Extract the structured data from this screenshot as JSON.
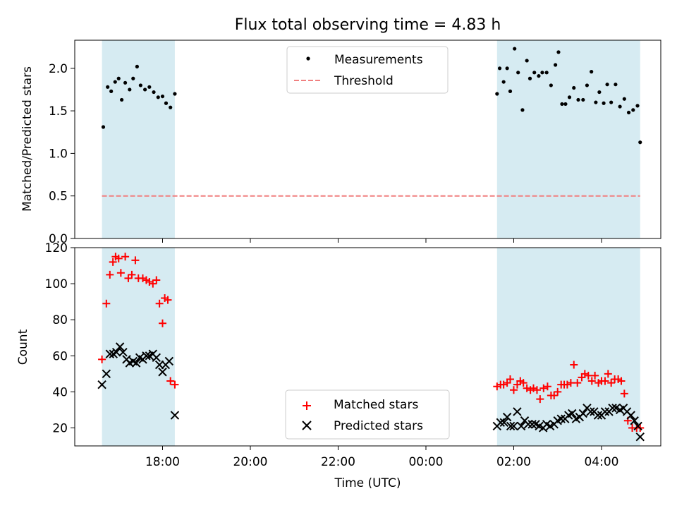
{
  "title": "Flux total observing time = 4.83 h",
  "colors": {
    "band": "#add8e6",
    "measurement": "#000000",
    "threshold": "#f08080",
    "matched": "#ff0000",
    "predicted": "#000000"
  },
  "chart_data": [
    {
      "type": "scatter",
      "panel": "top",
      "ylabel": "Matched/Predicted stars",
      "xlabel": "",
      "xlim_hours": [
        16.0,
        29.35
      ],
      "ylim": [
        0.0,
        2.33
      ],
      "yticks": [
        0.0,
        0.5,
        1.0,
        1.5,
        2.0
      ],
      "ytick_labels": [
        "0.0",
        "0.5",
        "1.0",
        "1.5",
        "2.0"
      ],
      "xticks_hours": [
        18,
        20,
        22,
        24,
        26,
        28
      ],
      "observing_windows_hours": [
        [
          16.62,
          18.28
        ],
        [
          25.62,
          28.88
        ]
      ],
      "legend_position": "upper center",
      "legend": [
        "Measurements",
        "Threshold"
      ],
      "threshold": {
        "name": "Threshold",
        "value": 0.5,
        "x_range_hours": [
          16.62,
          28.88
        ]
      },
      "series": [
        {
          "name": "Measurements",
          "x_hours": [
            16.65,
            16.75,
            16.83,
            16.92,
            17.0,
            17.07,
            17.15,
            17.25,
            17.33,
            17.42,
            17.5,
            17.6,
            17.7,
            17.8,
            17.9,
            18.0,
            18.08,
            18.18,
            18.28,
            25.62,
            25.68,
            25.77,
            25.85,
            25.92,
            26.02,
            26.1,
            26.2,
            26.3,
            26.37,
            26.47,
            26.57,
            26.65,
            26.75,
            26.85,
            26.95,
            27.02,
            27.1,
            27.18,
            27.27,
            27.37,
            27.47,
            27.58,
            27.67,
            27.77,
            27.87,
            27.95,
            28.05,
            28.13,
            28.22,
            28.32,
            28.42,
            28.52,
            28.62,
            28.72,
            28.82,
            28.88
          ],
          "values": [
            1.31,
            1.78,
            1.73,
            1.84,
            1.88,
            1.63,
            1.83,
            1.75,
            1.88,
            2.02,
            1.8,
            1.75,
            1.78,
            1.72,
            1.66,
            1.67,
            1.59,
            1.54,
            1.7,
            1.7,
            2.0,
            1.84,
            2.0,
            1.73,
            2.23,
            1.95,
            1.51,
            2.09,
            1.88,
            1.95,
            1.91,
            1.95,
            1.95,
            1.8,
            2.04,
            2.19,
            1.58,
            1.58,
            1.66,
            1.77,
            1.63,
            1.63,
            1.8,
            1.96,
            1.6,
            1.72,
            1.59,
            1.81,
            1.6,
            1.81,
            1.55,
            1.64,
            1.48,
            1.51,
            1.56,
            1.13
          ]
        }
      ]
    },
    {
      "type": "scatter",
      "panel": "bottom",
      "ylabel": "Count",
      "xlabel": "Time (UTC)",
      "xlim_hours": [
        16.0,
        29.35
      ],
      "ylim": [
        10,
        120
      ],
      "yticks": [
        20,
        40,
        60,
        80,
        100,
        120
      ],
      "ytick_labels": [
        "20",
        "40",
        "60",
        "80",
        "100",
        "120"
      ],
      "xticks_hours": [
        18,
        20,
        22,
        24,
        26,
        28
      ],
      "xtick_labels": [
        "18:00",
        "20:00",
        "22:00",
        "00:00",
        "02:00",
        "04:00"
      ],
      "observing_windows_hours": [
        [
          16.62,
          18.28
        ],
        [
          25.62,
          28.88
        ]
      ],
      "legend_position": "lower center",
      "legend": [
        "Matched stars",
        "Predicted stars"
      ],
      "series": [
        {
          "name": "Matched stars",
          "marker": "plus",
          "x_hours": [
            16.62,
            16.72,
            16.8,
            16.87,
            16.93,
            17.0,
            17.05,
            17.15,
            17.22,
            17.3,
            17.38,
            17.45,
            17.55,
            17.63,
            17.7,
            17.78,
            17.86,
            17.93,
            18.0,
            18.05,
            18.12,
            18.18,
            18.28,
            25.62,
            25.7,
            25.77,
            25.85,
            25.92,
            26.0,
            26.08,
            26.15,
            26.22,
            26.3,
            26.38,
            26.45,
            26.53,
            26.6,
            26.68,
            26.77,
            26.85,
            26.92,
            27.0,
            27.08,
            27.15,
            27.22,
            27.3,
            27.37,
            27.45,
            27.55,
            27.62,
            27.7,
            27.78,
            27.85,
            27.93,
            28.0,
            28.08,
            28.15,
            28.22,
            28.3,
            28.38,
            28.45,
            28.52,
            28.6,
            28.7,
            28.8,
            28.88
          ],
          "values": [
            58,
            89,
            105,
            112,
            115,
            114,
            106,
            115,
            103,
            105,
            113,
            103,
            103,
            102,
            101,
            100,
            102,
            89,
            78,
            92,
            91,
            46,
            44,
            43,
            44,
            44,
            45,
            47,
            41,
            44,
            46,
            45,
            42,
            41,
            42,
            41,
            36,
            42,
            43,
            38,
            38,
            40,
            44,
            44,
            44,
            45,
            55,
            45,
            48,
            50,
            49,
            46,
            49,
            45,
            46,
            46,
            50,
            45,
            47,
            47,
            46,
            39,
            24,
            20,
            20,
            20
          ]
        },
        {
          "name": "Predicted stars",
          "marker": "x",
          "x_hours": [
            16.62,
            16.72,
            16.8,
            16.88,
            16.95,
            17.03,
            17.1,
            17.18,
            17.25,
            17.33,
            17.4,
            17.48,
            17.55,
            17.63,
            17.7,
            17.78,
            17.86,
            17.93,
            18.0,
            18.07,
            18.15,
            18.28,
            25.62,
            25.7,
            25.78,
            25.85,
            25.93,
            26.0,
            26.08,
            26.17,
            26.25,
            26.33,
            26.42,
            26.5,
            26.58,
            26.67,
            26.75,
            26.83,
            26.92,
            27.0,
            27.08,
            27.17,
            27.25,
            27.33,
            27.42,
            27.5,
            27.58,
            27.67,
            27.75,
            27.83,
            27.92,
            28.0,
            28.08,
            28.17,
            28.25,
            28.33,
            28.42,
            28.5,
            28.58,
            28.67,
            28.75,
            28.83,
            28.88
          ],
          "values": [
            44,
            50,
            61,
            61,
            62,
            65,
            62,
            58,
            56,
            57,
            56,
            59,
            58,
            60,
            60,
            61,
            59,
            55,
            51,
            55,
            57,
            27,
            21,
            23,
            23,
            26,
            21,
            21,
            29,
            21,
            24,
            22,
            22,
            22,
            21,
            20,
            22,
            21,
            22,
            24,
            25,
            25,
            27,
            28,
            25,
            26,
            28,
            31,
            29,
            29,
            27,
            27,
            29,
            29,
            31,
            31,
            30,
            31,
            29,
            27,
            24,
            21,
            15
          ]
        }
      ]
    }
  ]
}
